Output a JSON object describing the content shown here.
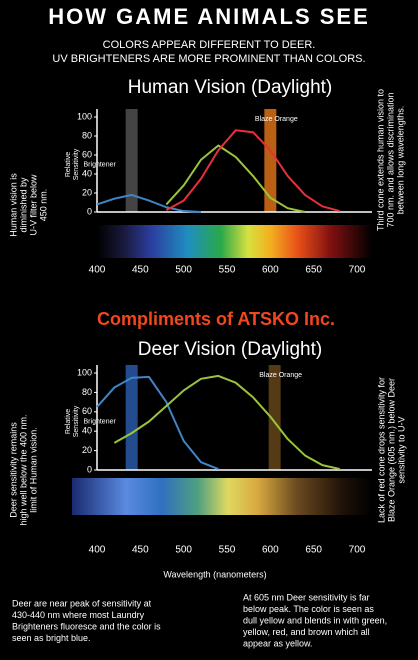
{
  "header": {
    "title": "HOW GAME ANIMALS SEE",
    "subtitle": [
      "COLORS APPEAR DIFFERENT TO DEER.",
      "UV BRIGHTENERS ARE MORE PROMINENT THAN COLORS."
    ]
  },
  "credit": "Compliments of ATSKO Inc.",
  "notes": {
    "human_left": [
      "Human vision is",
      "diminished by",
      "U-V filter below",
      "450 nm."
    ],
    "human_right": [
      "Third cone extends human vision to",
      "700 nm. and allows discrimination",
      "between long wavelengths."
    ],
    "deer_left": [
      "Deer sensitivity remains",
      "high well below the 400 nm.",
      "limit of Human vision."
    ],
    "deer_right": [
      "Lack of red cone drops sensitivity for",
      "Blaze Orange (605 nm.) below Deer",
      "sensitivity to U-V"
    ],
    "bottom_left": [
      "Deer are near peak of sensitivity at",
      "430-440 nm where most Laundry",
      "Brighteners fluoresce and the color is",
      "seen as bright blue."
    ],
    "bottom_right": [
      "At 605 nm Deer sensitivity is far",
      "below peak. The color is seen as",
      "dull yellow and blends in with green,",
      "yellow, red, and brown which all",
      "appear as yellow."
    ]
  },
  "chart_data": [
    {
      "type": "line",
      "title": "Human Vision (Daylight)",
      "y_label": [
        "Relative",
        "Sensitivity"
      ],
      "x": [
        400,
        420,
        440,
        460,
        480,
        500,
        520,
        540,
        560,
        580,
        600,
        620,
        640,
        660,
        680,
        700
      ],
      "series": [
        {
          "color": "#3f86c8",
          "values": [
            8,
            14,
            18,
            12,
            5,
            1,
            0,
            null,
            null,
            null,
            null,
            null,
            null,
            null,
            null,
            null
          ]
        },
        {
          "color": "#9bc43c",
          "values": [
            null,
            null,
            null,
            null,
            8,
            28,
            55,
            70,
            58,
            38,
            15,
            4,
            0,
            null,
            null,
            null
          ]
        },
        {
          "color": "#e8303a",
          "values": [
            null,
            null,
            null,
            null,
            2,
            12,
            35,
            65,
            86,
            84,
            65,
            38,
            18,
            6,
            1,
            null
          ]
        }
      ],
      "bands": [
        {
          "label": "Brightener",
          "x": 440,
          "color": "#555"
        },
        {
          "label": "Blaze Orange",
          "x": 600,
          "color": "#e8781a"
        }
      ],
      "xlim": [
        400,
        700
      ],
      "ylim": [
        0,
        100
      ],
      "xticks": [
        400,
        450,
        500,
        550,
        600,
        650,
        700
      ],
      "yticks": [
        0,
        20,
        40,
        60,
        80,
        100
      ]
    },
    {
      "type": "line",
      "title": "Deer Vision (Daylight)",
      "y_label": [
        "Relative",
        "Sensitivity"
      ],
      "x_label": "Wavelength (nanometers)",
      "x": [
        400,
        420,
        440,
        460,
        480,
        500,
        520,
        540,
        560,
        580,
        600,
        620,
        640,
        660,
        680,
        700
      ],
      "series": [
        {
          "color": "#3f86c8",
          "values": [
            65,
            85,
            95,
            96,
            70,
            30,
            8,
            1,
            null,
            null,
            null,
            null,
            null,
            null,
            null,
            null
          ]
        },
        {
          "color": "#9bc43c",
          "values": [
            null,
            28,
            38,
            50,
            66,
            82,
            94,
            97,
            90,
            75,
            55,
            32,
            15,
            5,
            1,
            null
          ]
        }
      ],
      "bands": [
        {
          "label": "Brightener",
          "x": 440,
          "color": "#2a5fb0"
        },
        {
          "label": "Blaze Orange",
          "x": 605,
          "color": "#6a4a1a"
        }
      ],
      "xlim": [
        400,
        700
      ],
      "ylim": [
        0,
        100
      ],
      "xticks": [
        400,
        450,
        500,
        550,
        600,
        650,
        700
      ],
      "yticks": [
        0,
        20,
        40,
        60,
        80,
        100
      ]
    }
  ]
}
